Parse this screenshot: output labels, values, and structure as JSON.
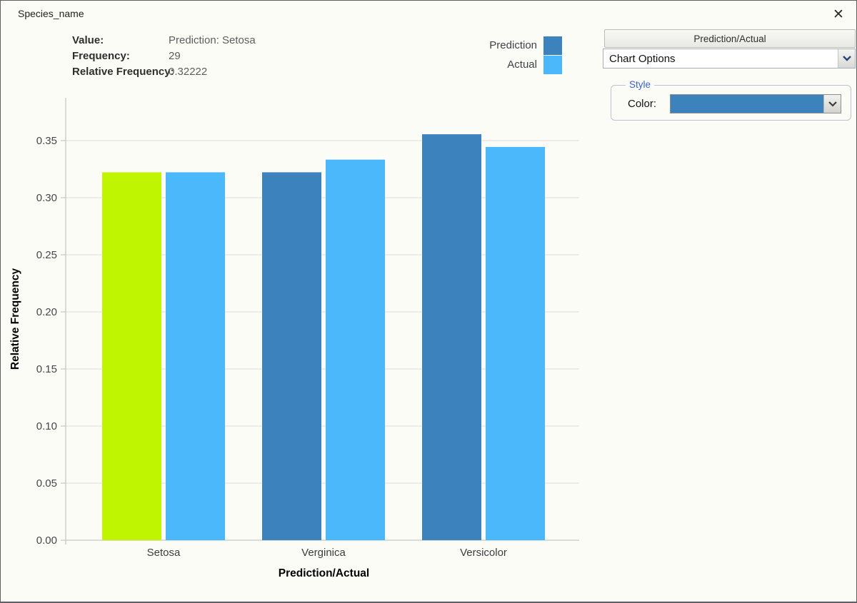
{
  "window": {
    "title": "Species_name",
    "close_icon": "✕"
  },
  "info_panel": {
    "rows": [
      {
        "label": "Value:",
        "value": "Prediction: Setosa"
      },
      {
        "label": "Frequency:",
        "value": "29"
      },
      {
        "label": "Relative Frequency:",
        "value": "0.32222"
      }
    ]
  },
  "legend": {
    "items": [
      {
        "label": "Prediction",
        "color": "#3c82bd"
      },
      {
        "label": "Actual",
        "color": "#4bb8fc"
      }
    ]
  },
  "side_panel": {
    "header_button_label": "Prediction/Actual",
    "options_select_value": "Chart Options",
    "style_group": {
      "title": "Style",
      "color_label": "Color:",
      "color_value": "#3c82bd"
    }
  },
  "chart_data": {
    "type": "bar",
    "title": "",
    "categories": [
      "Setosa",
      "Verginica",
      "Versicolor"
    ],
    "series": [
      {
        "name": "Prediction",
        "color": "#3c82bd",
        "values": [
          0.32222,
          0.32222,
          0.35556
        ]
      },
      {
        "name": "Actual",
        "color": "#4bb8fc",
        "values": [
          0.32222,
          0.33333,
          0.34444
        ]
      }
    ],
    "highlight": {
      "series": "Prediction",
      "category": "Setosa",
      "color": "#c0f500"
    },
    "xlabel": "Prediction/Actual",
    "ylabel": "Relative Frequency",
    "ylim": [
      0,
      0.3875
    ],
    "yticks": [
      0.0,
      0.05,
      0.1,
      0.15,
      0.2,
      0.25,
      0.3,
      0.35
    ],
    "ytick_format_decimals": 2,
    "grid": true,
    "legend_position": "top-right",
    "colors": {
      "grid": "#e3e3df",
      "axis": "#c9c9c4",
      "tick_text": "#46484a",
      "axis_title": "#000000"
    }
  }
}
